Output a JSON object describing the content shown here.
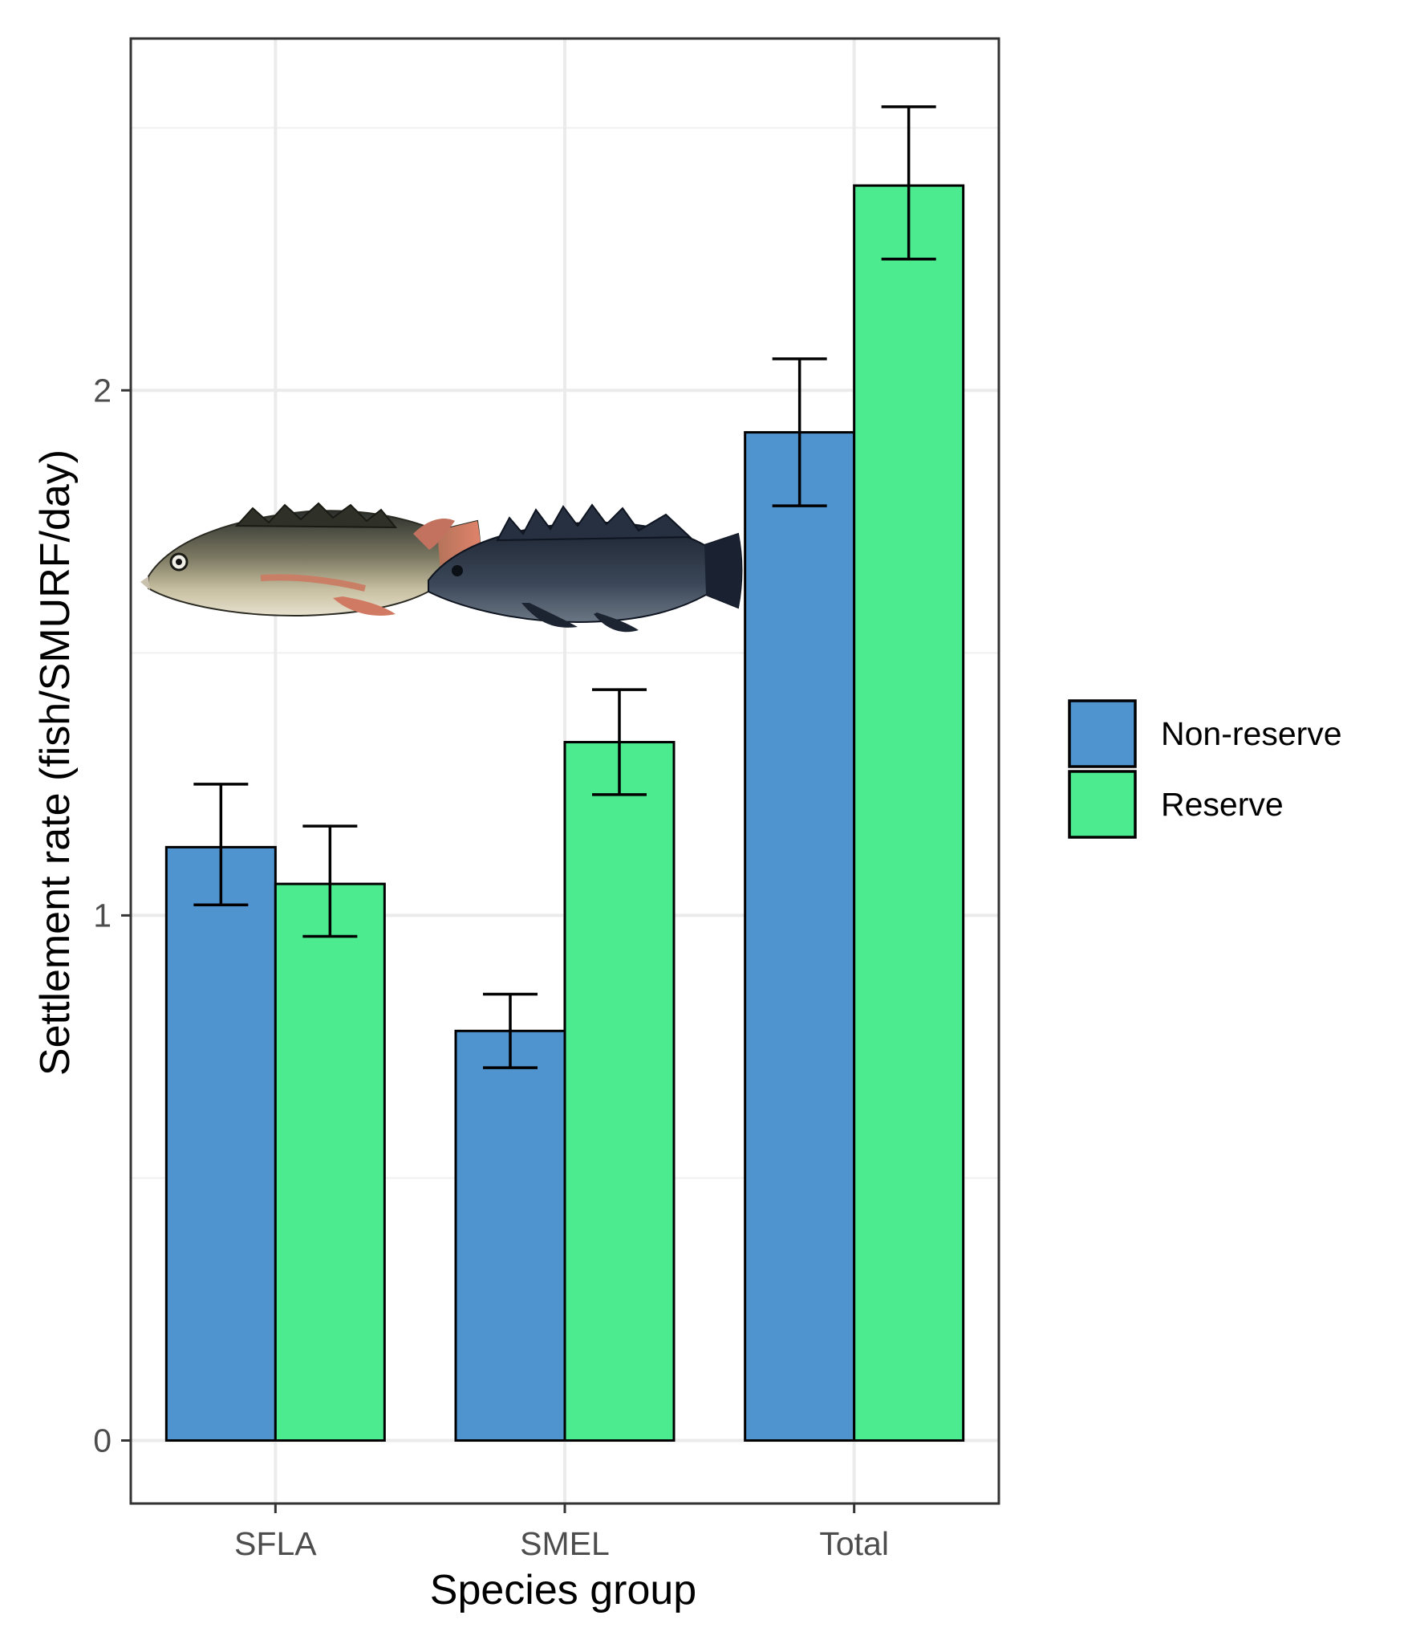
{
  "chart_data": {
    "type": "bar",
    "xlabel": "Species group",
    "ylabel": "Settlement rate (fish/SMURF/day)",
    "categories": [
      "SFLA",
      "SMEL",
      "Total"
    ],
    "series": [
      {
        "name": "Non-reserve",
        "color": "#4f93cf",
        "values": [
          1.13,
          0.78,
          1.92
        ],
        "err_low": [
          1.02,
          0.71,
          1.78
        ],
        "err_high": [
          1.25,
          0.85,
          2.06
        ]
      },
      {
        "name": "Reserve",
        "color": "#4deb8f",
        "values": [
          1.06,
          1.33,
          2.39
        ],
        "err_low": [
          0.96,
          1.23,
          2.25
        ],
        "err_high": [
          1.17,
          1.43,
          2.54
        ]
      }
    ],
    "ylim": [
      -0.12,
      2.67
    ],
    "yticks": [
      0,
      1,
      2
    ],
    "ytick_labels": [
      "0",
      "1",
      "2"
    ],
    "grid": true,
    "legend_position": "right",
    "images": [
      "sfla-fish-icon",
      "smel-fish-icon"
    ]
  }
}
